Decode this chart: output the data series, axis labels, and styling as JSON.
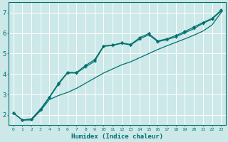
{
  "title": "",
  "xlabel": "Humidex (Indice chaleur)",
  "ylabel": "",
  "background_color": "#cce8e8",
  "grid_color": "#ffffff",
  "line_color": "#007070",
  "xlim": [
    -0.5,
    23.5
  ],
  "ylim": [
    1.5,
    7.5
  ],
  "yticks": [
    2,
    3,
    4,
    5,
    6,
    7
  ],
  "xticks": [
    0,
    1,
    2,
    3,
    4,
    5,
    6,
    7,
    8,
    9,
    10,
    11,
    12,
    13,
    14,
    15,
    16,
    17,
    18,
    19,
    20,
    21,
    22,
    23
  ],
  "series1_x": [
    0,
    1,
    2,
    3,
    4,
    5,
    6,
    7,
    8,
    9,
    10,
    11,
    12,
    13,
    14,
    15,
    16,
    17,
    18,
    19,
    20,
    21,
    22,
    23
  ],
  "series1_y": [
    2.1,
    1.75,
    1.75,
    2.2,
    2.75,
    2.95,
    3.1,
    3.3,
    3.55,
    3.8,
    4.05,
    4.25,
    4.45,
    4.6,
    4.8,
    5.0,
    5.2,
    5.38,
    5.55,
    5.72,
    5.9,
    6.1,
    6.4,
    7.0
  ],
  "series2_x": [
    0,
    1,
    2,
    3,
    4,
    5,
    6,
    7,
    8,
    9,
    10,
    11,
    12,
    13,
    14,
    15,
    16,
    17,
    18,
    19,
    20,
    21,
    22,
    23
  ],
  "series2_y": [
    2.1,
    1.75,
    1.8,
    2.25,
    2.85,
    3.5,
    4.05,
    4.05,
    4.35,
    4.62,
    5.35,
    5.4,
    5.5,
    5.42,
    5.72,
    5.92,
    5.58,
    5.68,
    5.82,
    6.02,
    6.22,
    6.48,
    6.68,
    7.08
  ],
  "series3_x": [
    0,
    1,
    2,
    3,
    4,
    5,
    6,
    7,
    8,
    9,
    10,
    11,
    12,
    13,
    14,
    15,
    16,
    17,
    18,
    19,
    20,
    21,
    22,
    23
  ],
  "series3_y": [
    2.1,
    1.75,
    1.8,
    2.28,
    2.88,
    3.55,
    4.08,
    4.08,
    4.42,
    4.7,
    5.38,
    5.42,
    5.52,
    5.45,
    5.78,
    5.98,
    5.62,
    5.72,
    5.88,
    6.08,
    6.3,
    6.52,
    6.72,
    7.12
  ]
}
